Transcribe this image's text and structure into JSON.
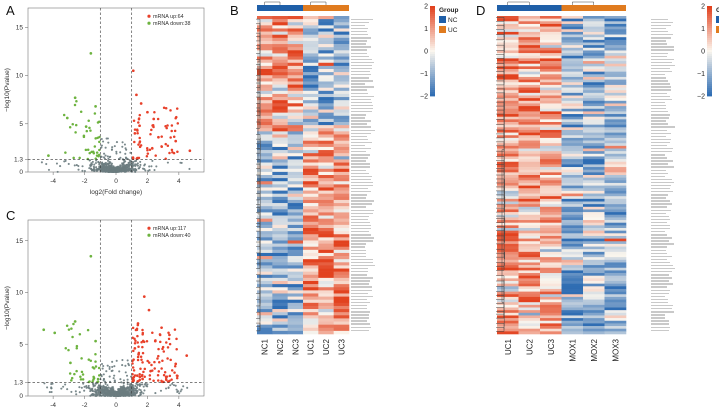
{
  "panels": {
    "A": {
      "letter": "A"
    },
    "B": {
      "letter": "B"
    },
    "C": {
      "letter": "C"
    },
    "D": {
      "letter": "D"
    }
  },
  "colors": {
    "up": "#e8402a",
    "down": "#6db33f",
    "ns": "#6b7c80",
    "nc_group": "#1f5fa8",
    "uc_group_B": "#e07b1f",
    "uc_group_D": "#1f5fa8",
    "mox_group": "#e07b1f",
    "heat_low": "#2f6db3",
    "heat_mid": "#fbf6ee",
    "heat_high": "#e2421f"
  },
  "chart_data": [
    {
      "panel": "A",
      "type": "scatter",
      "title": "",
      "xlabel": "log2(Fold change)",
      "ylabel": "−log10(Pvalue)",
      "xlim": [
        -5.6,
        5.6
      ],
      "ylim": [
        0,
        17
      ],
      "xticks": [
        "-4",
        "-2",
        "0",
        "2",
        "4"
      ],
      "xtick_values": [
        -4,
        -2,
        0,
        2,
        4
      ],
      "yticks": [
        "0",
        "1.3",
        "5",
        "10",
        "15"
      ],
      "ytick_values": [
        0,
        1.3,
        5,
        10,
        15
      ],
      "thresholds": {
        "x": [
          -1,
          1
        ],
        "y": 1.3
      },
      "legend": [
        {
          "label": "mRNA up:64",
          "color": "#e8402a"
        },
        {
          "label": "mRNA down:38",
          "color": "#6db33f"
        }
      ],
      "legend_position": "top-right",
      "n_up": 64,
      "n_down": 38,
      "n_ns": 600,
      "seed": 11,
      "max_y": 12.3,
      "series": [
        {
          "name": "up highlights",
          "x": [
            1.1,
            1.3,
            1.6,
            2.0,
            2.4,
            1.5,
            3.8,
            4.7,
            1.2,
            2.7
          ],
          "y": [
            10.5,
            8.0,
            7.1,
            6.2,
            5.5,
            4.8,
            3.2,
            2.2,
            4.0,
            3.6
          ]
        },
        {
          "name": "down highlights",
          "x": [
            -1.6,
            -2.6,
            -1.3,
            -3.1,
            -1.9,
            -4.3
          ],
          "y": [
            12.3,
            7.7,
            6.8,
            5.6,
            4.7,
            1.7
          ]
        }
      ]
    },
    {
      "panel": "C",
      "type": "scatter",
      "title": "",
      "xlabel": "log2(Fold change)",
      "ylabel": "−log10(Pvalue)",
      "xlim": [
        -5.6,
        5.6
      ],
      "ylim": [
        0,
        17
      ],
      "xticks": [
        "-4",
        "-2",
        "0",
        "2",
        "4"
      ],
      "xtick_values": [
        -4,
        -2,
        0,
        2,
        4
      ],
      "yticks": [
        "0",
        "1.3",
        "5",
        "10",
        "15"
      ],
      "ytick_values": [
        0,
        1.3,
        5,
        10,
        15
      ],
      "thresholds": {
        "x": [
          -1,
          1
        ],
        "y": 1.3
      },
      "legend": [
        {
          "label": "mRNA up:117",
          "color": "#e8402a"
        },
        {
          "label": "mRNA down:40",
          "color": "#6db33f"
        }
      ],
      "legend_position": "top-right",
      "n_up": 117,
      "n_down": 40,
      "n_ns": 800,
      "seed": 29,
      "max_y": 13.5,
      "series": [
        {
          "name": "up highlights",
          "x": [
            1.8,
            2.1,
            1.4,
            2.9,
            3.4,
            2.5,
            1.2,
            4.5,
            3.8,
            2.2
          ],
          "y": [
            9.6,
            8.3,
            7.0,
            6.6,
            5.9,
            5.3,
            4.6,
            3.9,
            3.1,
            2.4
          ]
        },
        {
          "name": "down highlights",
          "x": [
            -4.6,
            -3.9,
            -1.6,
            -2.6,
            -1.3,
            -2.9
          ],
          "y": [
            6.4,
            6.1,
            13.5,
            7.2,
            5.3,
            3.2
          ]
        }
      ]
    },
    {
      "panel": "B",
      "type": "heatmap",
      "columns": [
        "NC1",
        "NC2",
        "NC3",
        "UC1",
        "UC2",
        "UC3"
      ],
      "groups": [
        {
          "name": "NC",
          "span": 3,
          "color": "#1f5fa8"
        },
        {
          "name": "UC",
          "span": 3,
          "color": "#e07b1f"
        }
      ],
      "legend_title": "Group",
      "colorbar": {
        "ticks": [
          "2",
          "1",
          "0",
          "−1",
          "−2"
        ],
        "tick_values": [
          2,
          1,
          0,
          -1,
          -2
        ],
        "range": [
          -2,
          2
        ]
      },
      "rows": 102,
      "row_split": 37,
      "seed": 7
    },
    {
      "panel": "D",
      "type": "heatmap",
      "columns": [
        "UC1",
        "UC2",
        "UC3",
        "MOX1",
        "MOX2",
        "MOX3"
      ],
      "groups": [
        {
          "name": "UC",
          "span": 3,
          "color": "#1f5fa8"
        },
        {
          "name": "MOX",
          "span": 3,
          "color": "#e07b1f"
        }
      ],
      "legend_title": "Group",
      "colorbar": {
        "ticks": [
          "2",
          "1",
          "0",
          "−1",
          "−2"
        ],
        "tick_values": [
          2,
          1,
          0,
          -1,
          -2
        ],
        "range": [
          -2,
          2
        ]
      },
      "rows": 120,
      "row_split": 97,
      "seed": 19
    }
  ]
}
